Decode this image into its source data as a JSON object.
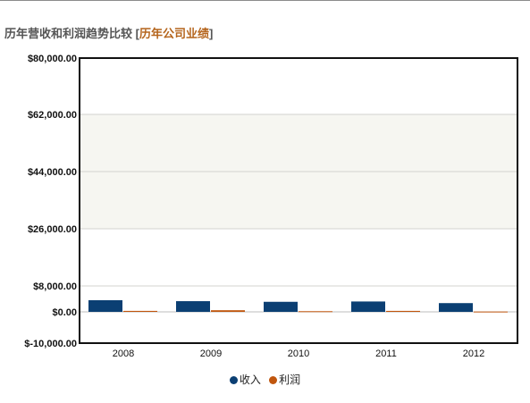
{
  "header": {
    "title": "历年营收和利润趋势比较",
    "bracket_open": "[",
    "link": "历年公司业绩",
    "bracket_close": "]"
  },
  "chart_data": {
    "type": "bar",
    "categories": [
      "2008",
      "2009",
      "2010",
      "2011",
      "2012"
    ],
    "series": [
      {
        "name": "收入",
        "color": "#0b3f73",
        "values": [
          3600,
          3300,
          3100,
          3200,
          2700
        ]
      },
      {
        "name": "利润",
        "color": "#c0560e",
        "values": [
          300,
          500,
          200,
          300,
          100
        ]
      }
    ],
    "yticks": [
      -10000,
      0,
      8000,
      26000,
      44000,
      62000,
      80000
    ],
    "ytick_labels": [
      "$-10,000.00",
      "$0.00",
      "$8,000.00",
      "$26,000.00",
      "$44,000.00",
      "$62,000.00",
      "$80,000.00"
    ],
    "ylim": [
      -10000,
      80000
    ],
    "grid": true,
    "legend_position": "bottom-center"
  }
}
